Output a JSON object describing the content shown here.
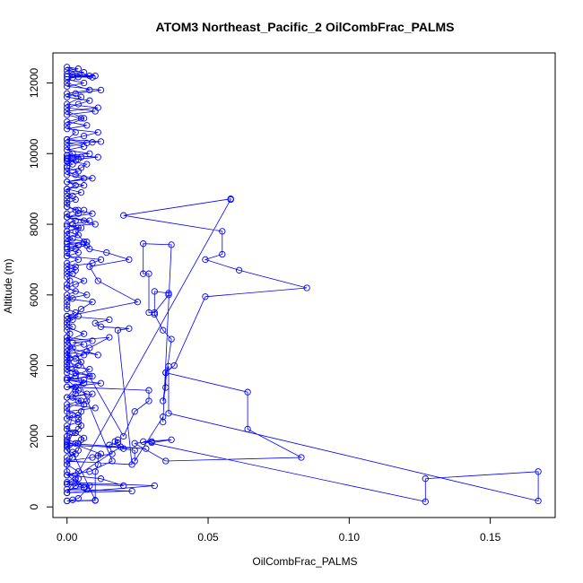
{
  "chart_data": {
    "type": "scatter",
    "title": "ATOM3 Northeast_Pacific_2 OilCombFrac_PALMS",
    "xlabel": "OilCombFrac_PALMS",
    "ylabel": "Altitude (m)",
    "xlim": [
      -0.005,
      0.173
    ],
    "ylim": [
      -300,
      12850
    ],
    "xticks": [
      0.0,
      0.05,
      0.1,
      0.15
    ],
    "xtick_labels": [
      "0.00",
      "0.05",
      "0.10",
      "0.15"
    ],
    "yticks": [
      0,
      2000,
      4000,
      6000,
      8000,
      10000,
      12000
    ],
    "ytick_labels": [
      "0",
      "2000",
      "4000",
      "6000",
      "8000",
      "10000",
      "12000"
    ],
    "color": "#0000ff",
    "marker": "open-circle",
    "connected": true,
    "grid": false,
    "series": [
      {
        "x": [
          0.0,
          0.002,
          0.004,
          0.007,
          0.008,
          0.0,
          0.003,
          0.006,
          0.0,
          0.004,
          0.0,
          0.002,
          0.0,
          0.003,
          0.0,
          0.002,
          0.0,
          0.0,
          0.002,
          0.0,
          0.0,
          0.007,
          0.009,
          0.0,
          0.003,
          0.0,
          0.009,
          0.0,
          0.005,
          0.0,
          0.008,
          0.015,
          0.0,
          0.006,
          0.0,
          0.0,
          0.004,
          0.0,
          0.005,
          0.009,
          0.0,
          0.007,
          0.0,
          0.003,
          0.006,
          0.0,
          0.003,
          0.0,
          0.009,
          0.012,
          0.0,
          0.004,
          0.0,
          0.007,
          0.0,
          0.002,
          0.0,
          0.0,
          0.004,
          0.0,
          0.003,
          0.0,
          0.0,
          0.003,
          0.0,
          0.0,
          0.0,
          0.002,
          0.0,
          0.0,
          0.006,
          0.0,
          0.009,
          0.003,
          0.0,
          0.005,
          0.007,
          0.0,
          0.004,
          0.011,
          0.0,
          0.008,
          0.0,
          0.006,
          0.0,
          0.009,
          0.012,
          0.0,
          0.006,
          0.011,
          0.0,
          0.007,
          0.0,
          0.005,
          0.0,
          0.01,
          0.0,
          0.004,
          0.008,
          0.0,
          0.003,
          0.012,
          0.0,
          0.006,
          0.0,
          0.002,
          0.01,
          0.0,
          0.006,
          0.0,
          0.004,
          0.0,
          0.008,
          0.0,
          0.004,
          0.009,
          0.002,
          0.0,
          0.008,
          0.0,
          0.005,
          0.0,
          0.011,
          0.0,
          0.006,
          0.0,
          0.003,
          0.0,
          0.007,
          0.0,
          0.002,
          0.0,
          0.005,
          0.0,
          0.002,
          0.0,
          0.003,
          0.0,
          0.002,
          0.0,
          0.0,
          0.004,
          0.0,
          0.006,
          0.0,
          0.003,
          0.0,
          0.005,
          0.0,
          0.003,
          0.0,
          0.0,
          0.004,
          0.009,
          0.0,
          0.006,
          0.01,
          0.0,
          0.005,
          0.0,
          0.004,
          0.0,
          0.007,
          0.0,
          0.004,
          0.0,
          0.003,
          0.0,
          0.0,
          0.004,
          0.0,
          0.003,
          0.0,
          0.002,
          0.0,
          0.001,
          0.0,
          0.0,
          0.003,
          0.0,
          0.002,
          0.0,
          0.0,
          0.0,
          0.003,
          0.0,
          0.002,
          0.0,
          0.002,
          0.0,
          0.001,
          0.0,
          0.0,
          0.0,
          0.002,
          0.0,
          0.0,
          0.001,
          0.0,
          0.0,
          0.0,
          0.003,
          0.008,
          0.0,
          0.006,
          0.0,
          0.004,
          0.007,
          0.0,
          0.005,
          0.0,
          0.01,
          0.0,
          0.004,
          0.0,
          0.004,
          0.0,
          0.0,
          0.003,
          0.0,
          0.0,
          0.004,
          0.0,
          0.0,
          0.003,
          0.0,
          0.0,
          0.0,
          0.004,
          0.003,
          0.0,
          0.058,
          0.058,
          0.02,
          0.055,
          0.055,
          0.049,
          0.061,
          0.085,
          0.049,
          0.038,
          0.035,
          0.064,
          0.064,
          0.083,
          0.035,
          0.024,
          0.03,
          0.03,
          0.037,
          0.027,
          0.127,
          0.127,
          0.167,
          0.167,
          0.036,
          0.036,
          0.035,
          0.035,
          0.034,
          0.037,
          0.034,
          0.031,
          0.031,
          0.036,
          0.036,
          0.031,
          0.029,
          0.029,
          0.027,
          0.027,
          0.037,
          0.034,
          0.034,
          0.024,
          0.024,
          0.02,
          0.017,
          0.018,
          0.018,
          0.015,
          0.016,
          0.011,
          0.011,
          0.01,
          0.01,
          0.0,
          0.01,
          0.002,
          0.004,
          0.005,
          0.006,
          0.003,
          0.004,
          0.005,
          0.004,
          0.005,
          0.006,
          0.004,
          0.002,
          0.003,
          0.003,
          0.006,
          0.0,
          0.003,
          0.0,
          0.004,
          0.0,
          0.003,
          0.007,
          0.011,
          0.0,
          0.006,
          0.002,
          0.009,
          0.0,
          0.02,
          0.024,
          0.029,
          0.029,
          0.0,
          0.012,
          0.0,
          0.008,
          0.0,
          0.0,
          0.006,
          0.0,
          0.016,
          0.008,
          0.0,
          0.012,
          0.02,
          0.0,
          0.006,
          0.0,
          0.023,
          0.0,
          0.031,
          0.0,
          0.019,
          0.0,
          0.028,
          0.0,
          0.0,
          0.012,
          0.009,
          0.0,
          0.023,
          0.018,
          0.022,
          0.012,
          0.01,
          0.015,
          0.0,
          0.025,
          0.011,
          0.008,
          0.022,
          0.014,
          0.008,
          0.006,
          0.003,
          0.002,
          0.008,
          0.0,
          0.004,
          0.006
        ],
        "y": [
          170,
          200,
          240,
          500,
          600,
          650,
          800,
          560,
          900,
          1000,
          1200,
          1400,
          1600,
          1800,
          1700,
          2100,
          2200,
          2000,
          2600,
          2500,
          2800,
          3000,
          3200,
          3100,
          3400,
          3600,
          3700,
          3900,
          4100,
          4300,
          4500,
          4800,
          4700,
          4900,
          5100,
          5300,
          5400,
          5200,
          5600,
          5800,
          5900,
          6000,
          6200,
          6300,
          6400,
          6600,
          6700,
          6800,
          6900,
          7000,
          7100,
          7200,
          7300,
          7400,
          7500,
          7600,
          7700,
          7800,
          7900,
          8000,
          8100,
          8200,
          8300,
          8400,
          8500,
          8600,
          8700,
          8800,
          8900,
          9000,
          9100,
          9200,
          9300,
          9400,
          9500,
          9600,
          9700,
          9800,
          9850,
          9900,
          9950,
          10000,
          10100,
          10200,
          10300,
          10320,
          10340,
          10400,
          10500,
          10600,
          10700,
          10800,
          10900,
          11000,
          11100,
          11200,
          11300,
          11400,
          11500,
          11600,
          11700,
          11800,
          11900,
          12000,
          12100,
          12150,
          12200,
          12250,
          12300,
          12350,
          12400,
          12450,
          12200,
          12180,
          12170,
          12160,
          12230,
          12000,
          11800,
          11700,
          11600,
          11400,
          11300,
          11200,
          11000,
          10800,
          10600,
          10400,
          10300,
          10200,
          10000,
          9950,
          9900,
          9880,
          9860,
          9850,
          9800,
          9780,
          9700,
          9650,
          9600,
          9500,
          9400,
          9300,
          9200,
          9100,
          9000,
          8900,
          8800,
          8700,
          8600,
          8500,
          8400,
          8300,
          8200,
          8100,
          8000,
          7950,
          7900,
          7800,
          7700,
          7600,
          7500,
          7450,
          7400,
          7350,
          7300,
          7200,
          7100,
          7000,
          6900,
          6800,
          6700,
          6600,
          6500,
          6400,
          6300,
          6200,
          6100,
          6000,
          5900,
          5800,
          5700,
          5600,
          5500,
          5400,
          5300,
          5200,
          5100,
          5000,
          4900,
          4800,
          4700,
          4600,
          4500,
          4400,
          4300,
          4200,
          4100,
          4000,
          3900,
          3800,
          3700,
          3600,
          3500,
          3400,
          3300,
          3200,
          3100,
          3000,
          2900,
          2800,
          2700,
          2600,
          2500,
          2400,
          2300,
          2200,
          2100,
          2000,
          1900,
          1800,
          1700,
          1600,
          1500,
          1400,
          1200,
          1000,
          800,
          600,
          400,
          8700,
          8720,
          8250,
          7800,
          7150,
          7000,
          6700,
          6200,
          5950,
          4000,
          3800,
          3250,
          2200,
          1400,
          1300,
          1800,
          1850,
          1820,
          1900,
          1850,
          150,
          800,
          1000,
          170,
          2650,
          3980,
          3800,
          3380,
          3000,
          4750,
          5000,
          5450,
          6100,
          6050,
          6000,
          5500,
          5500,
          6600,
          6600,
          7450,
          7420,
          2400,
          2550,
          1300,
          1600,
          1650,
          1850,
          1900,
          1820,
          1750,
          1500,
          1450,
          1200,
          1000,
          180,
          170,
          190,
          1550,
          1600,
          1900,
          1950,
          2100,
          2200,
          2300,
          2500,
          2700,
          2900,
          3000,
          3100,
          3200,
          3300,
          3600,
          3650,
          3700,
          3800,
          4000,
          4100,
          4200,
          4400,
          4300,
          4500,
          4600,
          4650,
          4700,
          4800,
          2000,
          2700,
          3000,
          3300,
          3400,
          3500,
          3600,
          3900,
          4000,
          4200,
          4300,
          4400,
          1300,
          1000,
          900,
          800,
          600,
          650,
          550,
          500,
          450,
          400,
          600,
          700,
          1700,
          1800,
          1650,
          1750,
          1850,
          1500,
          1400,
          1300,
          1200,
          5000,
          5050,
          5100,
          5200,
          5300,
          5400,
          5800,
          6400,
          6800,
          7000,
          7200,
          7300,
          7500,
          7800,
          8000,
          8100,
          8200,
          8300,
          8400
        ]
      }
    ]
  }
}
